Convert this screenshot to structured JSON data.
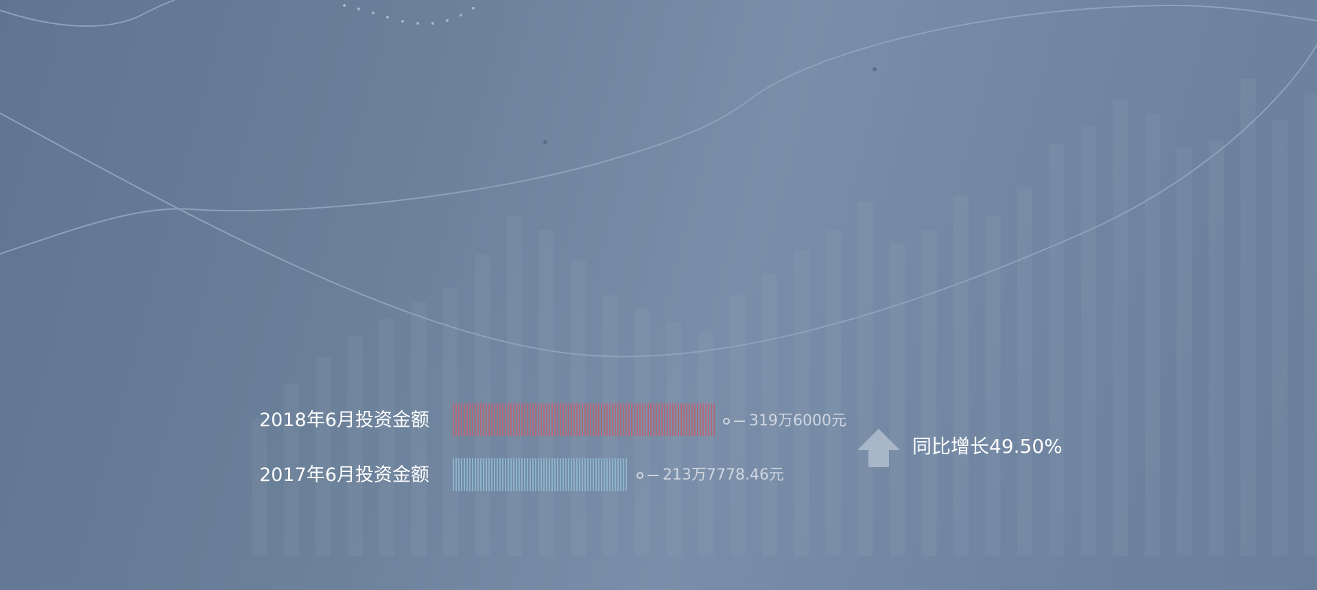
{
  "chart_data": {
    "type": "bar",
    "orientation": "horizontal",
    "categories": [
      "2018年6月投资金额",
      "2017年6月投资金额"
    ],
    "values": [
      3196000,
      2137778.46
    ],
    "value_labels": [
      "319万6000元",
      "213万7778.46元"
    ],
    "colors": [
      "#b06a79",
      "#8ab4cc"
    ],
    "xlim": [
      0,
      3196000
    ],
    "annotation": "同比增长49.50%",
    "growth_percent": 49.5,
    "grid": false
  },
  "colors": {
    "label_text": "#ffffff",
    "value_text": "#cfd6e0",
    "arrow": "#a9b6c7"
  }
}
